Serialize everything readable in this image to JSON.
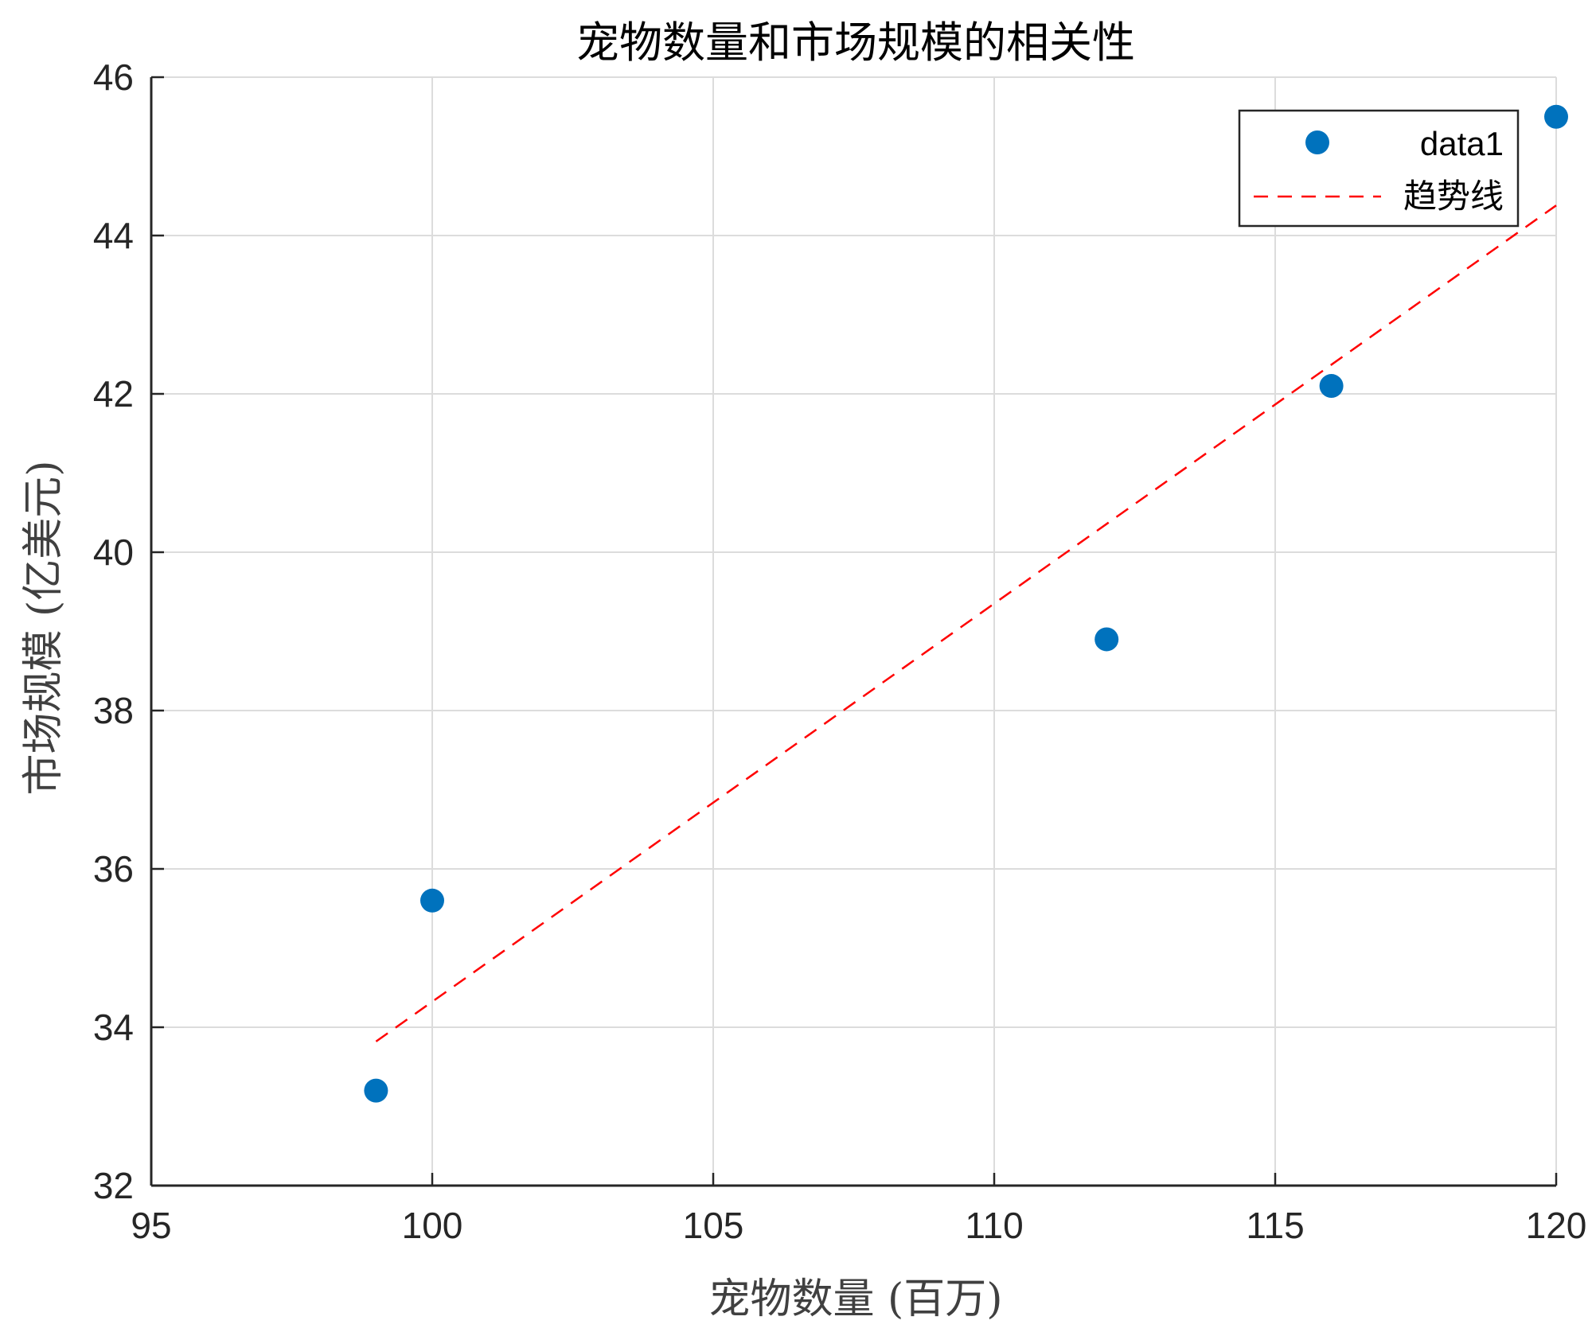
{
  "chart_data": {
    "type": "scatter",
    "title": "宠物数量和市场规模的相关性",
    "xlabel": "宠物数量 (百万)",
    "ylabel": "市场规模 (亿美元)",
    "xlim": [
      95,
      120
    ],
    "ylim": [
      32,
      46
    ],
    "xticks": [
      95,
      100,
      105,
      110,
      115,
      120
    ],
    "yticks": [
      32,
      34,
      36,
      38,
      40,
      42,
      44,
      46
    ],
    "grid": true,
    "legend_position": "top-right",
    "series": [
      {
        "name": "data1",
        "kind": "scatter",
        "color": "#0072BD",
        "x": [
          99,
          100,
          112,
          116,
          120
        ],
        "y": [
          33.2,
          35.6,
          38.9,
          42.1,
          45.5
        ]
      },
      {
        "name": "趋势线",
        "kind": "line",
        "style": "dashed",
        "color": "#FF0000",
        "x": [
          99,
          120
        ],
        "y": [
          33.82,
          44.38
        ]
      }
    ]
  }
}
